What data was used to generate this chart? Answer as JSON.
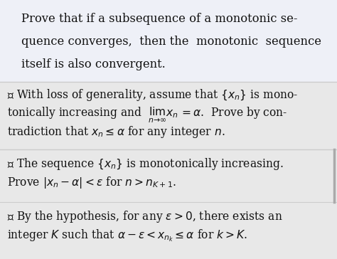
{
  "figsize": [
    4.74,
    3.64
  ],
  "dpi": 100,
  "bg_top": "#eef0f7",
  "bg_bottom": "#e8e8e8",
  "title_lines": [
    "Prove that if a subsequence of a monotonic se-",
    "quence converges,  then the  monotonic  sequence",
    "itself is also convergent."
  ],
  "sec1_line1": "① With loss of generality, assume that $\\{x_n\\}$ is mono-",
  "sec1_line2": "tonically increasing and  $\\lim_{n\\to\\infty} x_n = \\alpha$.  Prove by con-",
  "sec1_line3": "tradiction that $x_n \\leq \\alpha$ for any integer $n$.",
  "sec3_line1": "③ The sequence $\\{x_n\\}$ is monotonically increasing.",
  "sec3_line2": "Prove $|x_n - \\alpha| < \\varepsilon$ for $n > n_{K+1}$.",
  "sec2_line1": "② By the hypothesis, for any $\\varepsilon > 0$, there exists an",
  "sec2_line2": "integer $K$ such that $\\alpha - \\varepsilon < x_{n_k} \\leq \\alpha$ for $k > K$.",
  "title_fontsize": 11.8,
  "body_fontsize": 11.2
}
